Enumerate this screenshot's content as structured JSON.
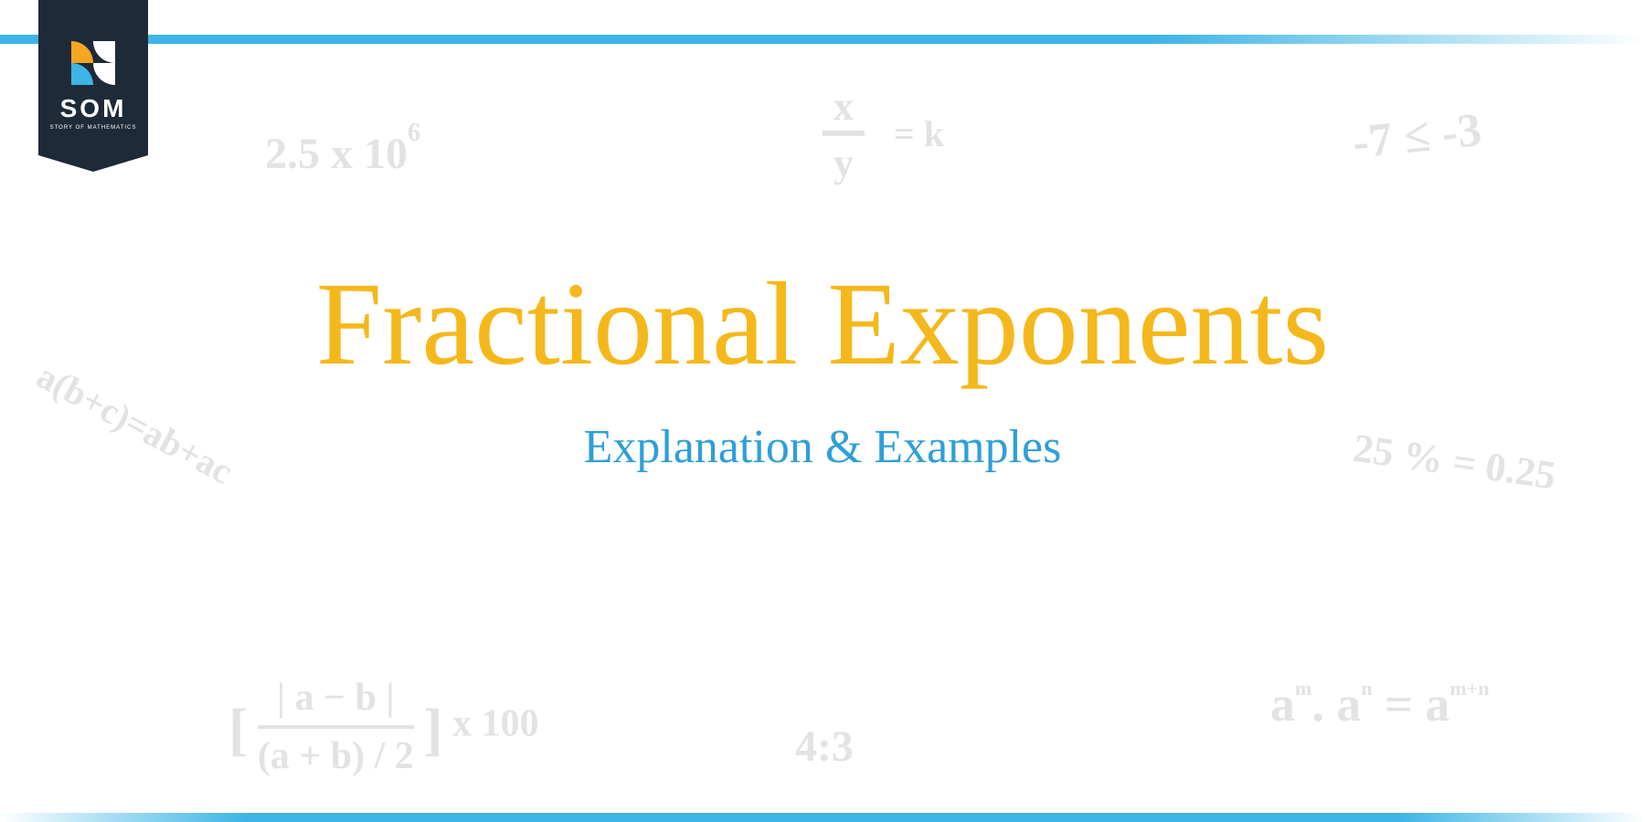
{
  "logo": {
    "text": "SOM",
    "subtext": "STORY OF MATHEMATICS"
  },
  "title": {
    "text": "Fractional Exponents",
    "color": "#f5b81c"
  },
  "subtitle": {
    "text": "Explanation & Examples",
    "color": "#2e9fd8"
  },
  "bg_color": "#e3e3e3",
  "equations": {
    "scientific": "2.5 x 10",
    "scientific_exp": "6",
    "fraction_num": "x",
    "fraction_den": "y",
    "fraction_rhs": "= k",
    "inequality": "-7 ≤ -3",
    "distributive": "a(b+c)=ab+ac",
    "percent": "25 % = 0.25",
    "abs_top": "| a − b |",
    "abs_bottom": "(a + b) / 2",
    "abs_suffix": "x 100",
    "ratio": "4:3",
    "power_a1": "a",
    "power_m": "m",
    "power_dot1": ". ",
    "power_a2": "a",
    "power_n": "n",
    "power_eq": " = ",
    "power_a3": "a",
    "power_mn": "m+n"
  }
}
